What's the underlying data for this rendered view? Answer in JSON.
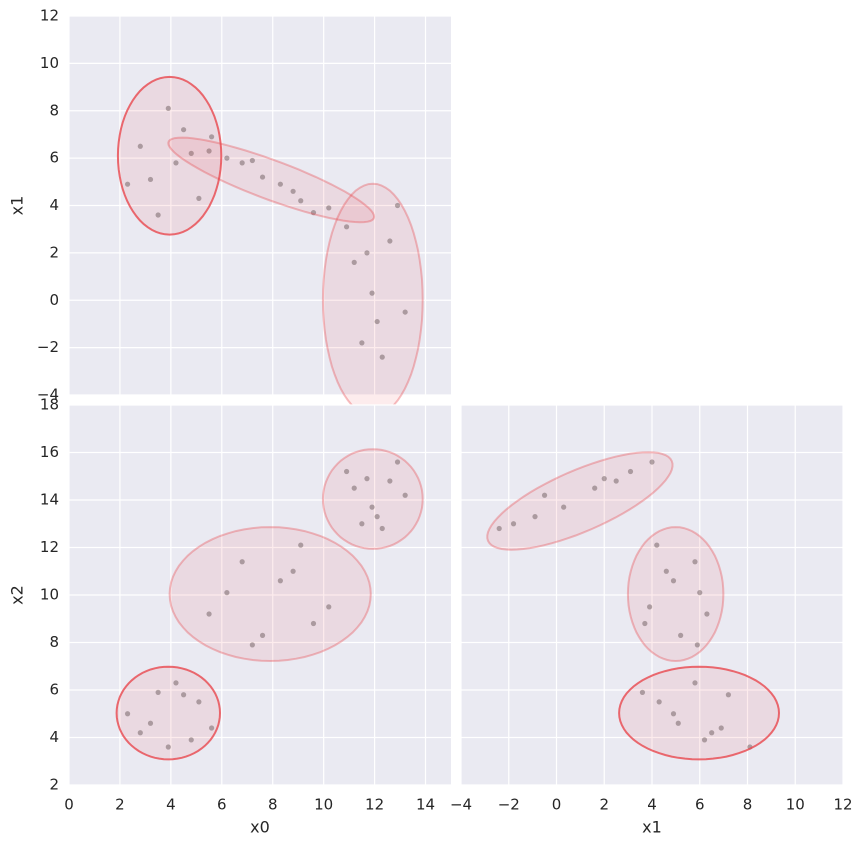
{
  "chart_data": [
    {
      "type": "scatter",
      "ylabel": "x1",
      "xlim": [
        0,
        15
      ],
      "ylim": [
        -4,
        12
      ],
      "xticks": [
        0,
        2,
        4,
        6,
        8,
        10,
        12,
        14
      ],
      "show_xticklabels": false,
      "yticks": [
        {
          "value": -4,
          "label": "−4"
        },
        {
          "value": -2,
          "label": "−2"
        },
        0,
        2,
        4,
        6,
        8,
        10,
        12
      ],
      "show_yticklabels": true,
      "grid": true,
      "point_color": "#3b3b3b",
      "ellipse_color": "#e8474e",
      "x": [
        3.2,
        4.5,
        2.8,
        5.1,
        3.9,
        4.2,
        2.3,
        5.6,
        3.5,
        4.8,
        5.5,
        6.8,
        7.6,
        8.3,
        9.1,
        10.2,
        7.2,
        8.8,
        6.2,
        9.6,
        11.5,
        12.6,
        11.9,
        13.2,
        10.9,
        12.3,
        11.2,
        12.9,
        12.1,
        11.7
      ],
      "y": [
        5.1,
        7.2,
        6.5,
        4.3,
        8.1,
        5.8,
        4.9,
        6.9,
        3.6,
        6.2,
        6.3,
        5.8,
        5.2,
        4.9,
        4.2,
        3.9,
        5.9,
        4.6,
        6.0,
        3.7,
        -1.8,
        2.5,
        0.3,
        -0.5,
        3.1,
        -2.4,
        1.6,
        4.0,
        -0.9,
        2.0
      ],
      "ellipses": [
        {
          "center": [
            3.95,
            6.1
          ],
          "axis_a": [
            2.03,
            0
          ],
          "axis_b": [
            0,
            3.33
          ],
          "alpha": 0.8
        },
        {
          "center": [
            7.94,
            5.08
          ],
          "axis_a": [
            4.03,
            -1.48
          ],
          "axis_b": [
            -0.31,
            1.0
          ],
          "alpha": 0.35
        },
        {
          "center": [
            11.93,
            0.02
          ],
          "axis_a": [
            1.96,
            0
          ],
          "axis_b": [
            0,
            4.9
          ],
          "alpha": 0.35
        }
      ]
    },
    {
      "type": "scatter",
      "xlabel": "x0",
      "ylabel": "x2",
      "xlim": [
        0,
        15
      ],
      "ylim": [
        2,
        18
      ],
      "xticks": [
        0,
        2,
        4,
        6,
        8,
        10,
        12,
        14
      ],
      "show_xticklabels": true,
      "yticks": [
        2,
        4,
        6,
        8,
        10,
        12,
        14,
        16,
        18
      ],
      "show_yticklabels": true,
      "grid": true,
      "point_color": "#3b3b3b",
      "ellipse_color": "#e8474e",
      "x": [
        3.2,
        4.5,
        2.8,
        5.1,
        3.9,
        4.2,
        2.3,
        5.6,
        3.5,
        4.8,
        5.5,
        6.8,
        7.6,
        8.3,
        9.1,
        10.2,
        7.2,
        8.8,
        6.2,
        9.6,
        11.5,
        12.6,
        11.9,
        13.2,
        10.9,
        12.3,
        11.2,
        12.9,
        12.1,
        11.7
      ],
      "y": [
        4.6,
        5.8,
        4.2,
        5.5,
        3.6,
        6.3,
        5.0,
        4.4,
        5.9,
        3.9,
        9.2,
        11.4,
        8.3,
        10.6,
        12.1,
        9.5,
        7.9,
        11.0,
        10.1,
        8.8,
        13.0,
        14.8,
        13.7,
        14.2,
        15.2,
        12.8,
        14.5,
        15.6,
        13.3,
        14.9
      ],
      "ellipses": [
        {
          "center": [
            3.9,
            5.03
          ],
          "axis_a": [
            2.03,
            0
          ],
          "axis_b": [
            0,
            1.95
          ],
          "alpha": 0.8
        },
        {
          "center": [
            7.9,
            10.04
          ],
          "axis_a": [
            3.95,
            0
          ],
          "axis_b": [
            0,
            2.82
          ],
          "alpha": 0.35
        },
        {
          "center": [
            11.93,
            14.04
          ],
          "axis_a": [
            1.96,
            0
          ],
          "axis_b": [
            0,
            2.1
          ],
          "alpha": 0.35
        }
      ]
    },
    {
      "type": "scatter",
      "xlabel": "x1",
      "xlim": [
        -4,
        12
      ],
      "ylim": [
        2,
        18
      ],
      "xticks": [
        {
          "value": -4,
          "label": "−4"
        },
        {
          "value": -2,
          "label": "−2"
        },
        0,
        2,
        4,
        6,
        8,
        10,
        12
      ],
      "show_xticklabels": true,
      "yticks": [
        2,
        4,
        6,
        8,
        10,
        12,
        14,
        16,
        18
      ],
      "show_yticklabels": false,
      "grid": true,
      "point_color": "#3b3b3b",
      "ellipse_color": "#e8474e",
      "x": [
        5.1,
        7.2,
        6.5,
        4.3,
        8.1,
        5.8,
        4.9,
        6.9,
        3.6,
        6.2,
        6.3,
        5.8,
        5.2,
        4.9,
        4.2,
        3.9,
        5.9,
        4.6,
        6.0,
        3.7,
        -1.8,
        2.5,
        0.3,
        -0.5,
        3.1,
        -2.4,
        1.6,
        4.0,
        -0.9,
        2.0
      ],
      "y": [
        4.6,
        5.8,
        4.2,
        5.5,
        3.6,
        6.3,
        5.0,
        4.4,
        5.9,
        3.9,
        9.2,
        11.4,
        8.3,
        10.6,
        12.1,
        9.5,
        7.9,
        11.0,
        10.1,
        8.8,
        13.0,
        14.8,
        13.7,
        14.2,
        15.2,
        12.8,
        14.5,
        15.6,
        13.3,
        14.9
      ],
      "ellipses": [
        {
          "center": [
            5.97,
            5.03
          ],
          "axis_a": [
            3.35,
            0
          ],
          "axis_b": [
            0,
            1.95
          ],
          "alpha": 0.8
        },
        {
          "center": [
            0.98,
            13.96
          ],
          "axis_a": [
            3.85,
            1.68
          ],
          "axis_b": [
            0.5,
            -1.18
          ],
          "alpha": 0.35
        },
        {
          "center": [
            4.99,
            10.04
          ],
          "axis_a": [
            2.0,
            0
          ],
          "axis_b": [
            0,
            2.82
          ],
          "alpha": 0.35
        }
      ]
    }
  ]
}
